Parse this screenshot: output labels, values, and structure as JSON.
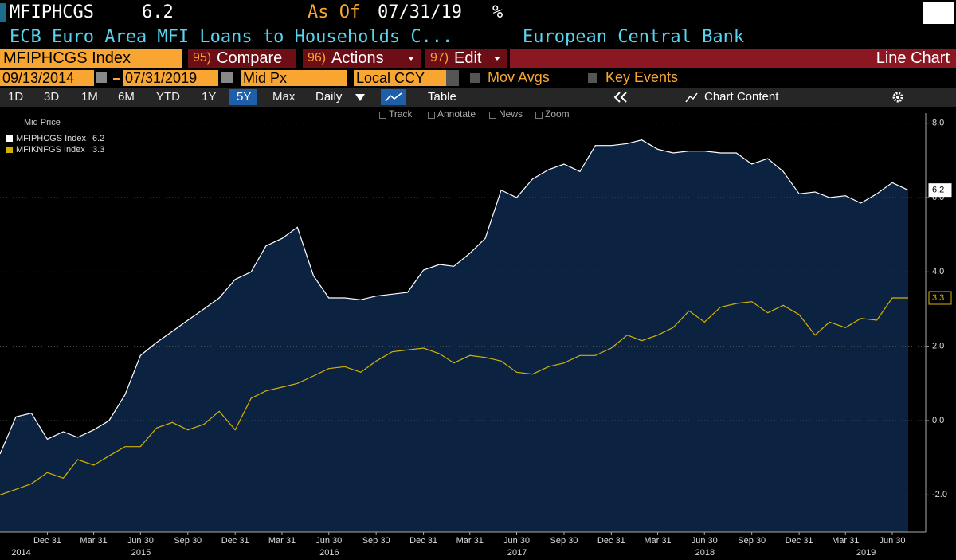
{
  "header": {
    "ticker": "MFIPHCGS",
    "value": "6.2",
    "as_of_label": "As Of",
    "as_of_date": "07/31/19",
    "unit": "%",
    "description": "ECB Euro Area MFI Loans to Households C...",
    "source": "European Central Bank"
  },
  "command_bar": {
    "security": "MFIPHCGS Index",
    "buttons": [
      {
        "number": "95)",
        "label": "Compare"
      },
      {
        "number": "96)",
        "label": "Actions"
      },
      {
        "number": "97)",
        "label": "Edit"
      }
    ],
    "view": "Line Chart"
  },
  "settings": {
    "start_date": "09/13/2014",
    "end_date": "07/31/2019",
    "price_field": "Mid Px",
    "currency": "Local CCY",
    "options": [
      "Mov Avgs",
      "Key Events"
    ]
  },
  "toolbar": {
    "periods": [
      "1D",
      "3D",
      "1M",
      "6M",
      "YTD",
      "1Y",
      "5Y",
      "Max"
    ],
    "selected_period": "5Y",
    "frequency": "Daily",
    "table": "Table",
    "chart_content": "Chart Content"
  },
  "chart_tools": [
    "Track",
    "Annotate",
    "News",
    "Zoom"
  ],
  "chart_data": {
    "type": "line",
    "legend_title": "Mid Price",
    "grid": true,
    "x": [
      "2014-09-30",
      "2014-10-31",
      "2014-11-30",
      "2014-12-31",
      "2015-01-31",
      "2015-02-28",
      "2015-03-31",
      "2015-04-30",
      "2015-05-31",
      "2015-06-30",
      "2015-07-31",
      "2015-08-31",
      "2015-09-30",
      "2015-10-31",
      "2015-11-30",
      "2015-12-31",
      "2016-01-31",
      "2016-02-29",
      "2016-03-31",
      "2016-04-30",
      "2016-05-31",
      "2016-06-30",
      "2016-07-31",
      "2016-08-31",
      "2016-09-30",
      "2016-10-31",
      "2016-11-30",
      "2016-12-31",
      "2017-01-31",
      "2017-02-28",
      "2017-03-31",
      "2017-04-30",
      "2017-05-31",
      "2017-06-30",
      "2017-07-31",
      "2017-08-31",
      "2017-09-30",
      "2017-10-31",
      "2017-11-30",
      "2017-12-31",
      "2018-01-31",
      "2018-02-28",
      "2018-03-31",
      "2018-04-30",
      "2018-05-31",
      "2018-06-30",
      "2018-07-31",
      "2018-08-31",
      "2018-09-30",
      "2018-10-31",
      "2018-11-30",
      "2018-12-31",
      "2019-01-31",
      "2019-02-28",
      "2019-03-31",
      "2019-04-30",
      "2019-05-31",
      "2019-06-30",
      "2019-07-31"
    ],
    "series": [
      {
        "name": "MFIPHCGS Index",
        "color": "#ffffff",
        "fill": "#0b2241",
        "values": [
          -0.9,
          0.1,
          0.2,
          -0.5,
          -0.3,
          -0.45,
          -0.25,
          0.0,
          0.7,
          1.75,
          2.1,
          2.4,
          2.7,
          3.0,
          3.3,
          3.8,
          4.0,
          4.7,
          4.9,
          5.2,
          3.9,
          3.3,
          3.3,
          3.25,
          3.35,
          3.4,
          3.45,
          4.05,
          4.2,
          4.15,
          4.5,
          4.9,
          6.2,
          6.0,
          6.5,
          6.75,
          6.9,
          6.7,
          7.4,
          7.4,
          7.45,
          7.55,
          7.3,
          7.2,
          7.25,
          7.25,
          7.2,
          7.2,
          6.9,
          7.05,
          6.7,
          6.1,
          6.15,
          6.0,
          6.05,
          5.85,
          6.1,
          6.4,
          6.2
        ]
      },
      {
        "name": "MFIKNFGS Index",
        "color": "#d4b300",
        "values": [
          -2.0,
          -1.85,
          -1.7,
          -1.4,
          -1.55,
          -1.05,
          -1.2,
          -0.95,
          -0.7,
          -0.7,
          -0.2,
          -0.05,
          -0.25,
          -0.1,
          0.25,
          -0.25,
          0.6,
          0.8,
          0.9,
          1.0,
          1.2,
          1.4,
          1.45,
          1.3,
          1.6,
          1.85,
          1.9,
          1.95,
          1.8,
          1.55,
          1.75,
          1.7,
          1.6,
          1.3,
          1.25,
          1.45,
          1.55,
          1.75,
          1.75,
          1.95,
          2.3,
          2.15,
          2.3,
          2.5,
          2.95,
          2.65,
          3.05,
          3.15,
          3.2,
          2.9,
          3.1,
          2.85,
          2.3,
          2.65,
          2.5,
          2.75,
          2.7,
          3.3,
          3.3
        ]
      }
    ],
    "xlim": [
      "2014-09-30",
      "2019-09-03"
    ],
    "ylim": [
      -3,
      8.1
    ],
    "yticks": [
      {
        "value": -2,
        "label": "-2.0"
      },
      {
        "value": 0,
        "label": "0.0"
      },
      {
        "value": 2,
        "label": "2.0"
      },
      {
        "value": 4,
        "label": "4.0"
      },
      {
        "value": 6,
        "label": "6.0"
      },
      {
        "value": 8,
        "label": "8.0"
      }
    ],
    "xticks": [
      {
        "value": "2014-12-31",
        "label": "Dec 31"
      },
      {
        "value": "2015-03-31",
        "label": "Mar 31"
      },
      {
        "value": "2015-06-30",
        "label": "Jun 30"
      },
      {
        "value": "2015-09-30",
        "label": "Sep 30"
      },
      {
        "value": "2015-12-31",
        "label": "Dec 31"
      },
      {
        "value": "2016-03-31",
        "label": "Mar 31"
      },
      {
        "value": "2016-06-30",
        "label": "Jun 30"
      },
      {
        "value": "2016-09-30",
        "label": "Sep 30"
      },
      {
        "value": "2016-12-31",
        "label": "Dec 31"
      },
      {
        "value": "2017-03-31",
        "label": "Mar 31"
      },
      {
        "value": "2017-06-30",
        "label": "Jun 30"
      },
      {
        "value": "2017-09-30",
        "label": "Sep 30"
      },
      {
        "value": "2017-12-31",
        "label": "Dec 31"
      },
      {
        "value": "2018-03-31",
        "label": "Mar 31"
      },
      {
        "value": "2018-06-30",
        "label": "Jun 30"
      },
      {
        "value": "2018-09-30",
        "label": "Sep 30"
      },
      {
        "value": "2018-12-31",
        "label": "Dec 31"
      },
      {
        "value": "2019-03-31",
        "label": "Mar 31"
      },
      {
        "value": "2019-06-30",
        "label": "Jun 30"
      }
    ],
    "year_labels": [
      {
        "value": "2014-11-10",
        "label": "2014"
      },
      {
        "value": "2015-07-01",
        "label": "2015"
      },
      {
        "value": "2016-07-01",
        "label": "2016"
      },
      {
        "value": "2017-07-01",
        "label": "2017"
      },
      {
        "value": "2018-07-01",
        "label": "2018"
      },
      {
        "value": "2019-05-10",
        "label": "2019"
      }
    ]
  }
}
